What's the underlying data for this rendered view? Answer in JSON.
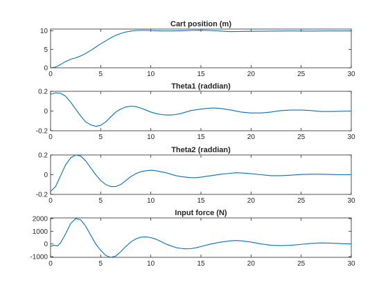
{
  "chart_data": [
    {
      "type": "line",
      "title": "Cart position (m)",
      "xlim": [
        0,
        30
      ],
      "ylim": [
        0,
        10.5
      ],
      "xticks": [
        0,
        5,
        10,
        15,
        20,
        25,
        30
      ],
      "yticks": [
        0,
        5,
        10
      ],
      "grid": false,
      "line_color": "#0072BD",
      "series": [
        {
          "x": [
            0,
            0.5,
            1,
            1.5,
            2,
            2.5,
            3,
            3.5,
            4,
            4.5,
            5,
            5.5,
            6,
            6.5,
            7,
            7.5,
            8,
            8.5,
            9,
            9.5,
            10,
            11,
            12,
            13,
            14,
            15,
            16,
            17,
            18,
            19,
            20,
            22,
            24,
            26,
            28,
            30
          ],
          "y": [
            0,
            0.2,
            0.9,
            1.7,
            2.3,
            2.7,
            3.2,
            3.9,
            4.7,
            5.6,
            6.5,
            7.3,
            8.1,
            8.8,
            9.3,
            9.7,
            9.95,
            10.1,
            10.15,
            10.15,
            10.1,
            10.0,
            10.0,
            10.05,
            10.15,
            10.2,
            10.1,
            9.95,
            9.8,
            9.85,
            9.9,
            9.95,
            10.0,
            9.95,
            10.0,
            10.0
          ]
        }
      ]
    },
    {
      "type": "line",
      "title": "Theta1 (raddian)",
      "xlim": [
        0,
        30
      ],
      "ylim": [
        -0.2,
        0.2
      ],
      "xticks": [
        0,
        5,
        10,
        15,
        20,
        25,
        30
      ],
      "yticks": [
        -0.2,
        0,
        0.2
      ],
      "grid": false,
      "line_color": "#0072BD",
      "series": [
        {
          "x": [
            0,
            0.5,
            1,
            1.5,
            2,
            2.5,
            3,
            3.5,
            4,
            4.5,
            5,
            5.5,
            6,
            6.5,
            7,
            7.5,
            8,
            8.5,
            9,
            9.5,
            10,
            10.5,
            11,
            11.5,
            12,
            12.5,
            13,
            14,
            15,
            16,
            16.5,
            17,
            18,
            19,
            20,
            21,
            22,
            23,
            24,
            25,
            26,
            27,
            28,
            29,
            30
          ],
          "y": [
            0.17,
            0.185,
            0.18,
            0.15,
            0.09,
            0.02,
            -0.05,
            -0.11,
            -0.14,
            -0.155,
            -0.145,
            -0.11,
            -0.06,
            -0.01,
            0.02,
            0.04,
            0.05,
            0.045,
            0.03,
            0.01,
            -0.01,
            -0.025,
            -0.035,
            -0.04,
            -0.04,
            -0.035,
            -0.025,
            0.005,
            0.02,
            0.03,
            0.03,
            0.025,
            0.01,
            -0.01,
            -0.02,
            -0.02,
            -0.01,
            0.005,
            0.01,
            0.01,
            0.005,
            -0.005,
            -0.005,
            -0.002,
            0
          ]
        }
      ]
    },
    {
      "type": "line",
      "title": "Theta2 (raddian)",
      "xlim": [
        0,
        30
      ],
      "ylim": [
        -0.2,
        0.2
      ],
      "xticks": [
        0,
        5,
        10,
        15,
        20,
        25,
        30
      ],
      "yticks": [
        -0.2,
        0,
        0.2
      ],
      "grid": false,
      "line_color": "#0072BD",
      "series": [
        {
          "x": [
            0,
            0.5,
            1,
            1.5,
            2,
            2.5,
            3,
            3.5,
            4,
            4.5,
            5,
            5.5,
            6,
            6.5,
            7,
            7.5,
            8,
            8.5,
            9,
            9.5,
            10,
            10.5,
            11,
            11.5,
            12,
            12.5,
            13,
            13.5,
            14,
            14.5,
            15,
            16,
            17,
            18,
            18.5,
            19,
            20,
            21,
            22,
            23,
            24,
            25,
            26,
            27,
            28,
            29,
            30
          ],
          "y": [
            -0.17,
            -0.12,
            -0.01,
            0.1,
            0.17,
            0.2,
            0.19,
            0.14,
            0.07,
            0.0,
            -0.06,
            -0.1,
            -0.12,
            -0.12,
            -0.1,
            -0.06,
            -0.02,
            0.01,
            0.03,
            0.04,
            0.045,
            0.04,
            0.03,
            0.02,
            0.005,
            -0.01,
            -0.02,
            -0.025,
            -0.03,
            -0.03,
            -0.025,
            -0.01,
            0.005,
            0.015,
            0.02,
            0.018,
            0.01,
            0.0,
            -0.01,
            -0.01,
            -0.005,
            0.002,
            0.005,
            0.005,
            0.002,
            0.0,
            0.0
          ]
        }
      ]
    },
    {
      "type": "line",
      "title": "Input force (N)",
      "xlim": [
        0,
        30
      ],
      "ylim": [
        -1050,
        2050
      ],
      "xticks": [
        0,
        5,
        10,
        15,
        20,
        25,
        30
      ],
      "yticks": [
        -1000,
        0,
        1000,
        2000
      ],
      "grid": false,
      "line_color": "#0072BD",
      "series": [
        {
          "x": [
            0,
            0.3,
            0.7,
            1,
            1.5,
            2,
            2.5,
            3,
            3.5,
            4,
            4.5,
            5,
            5.5,
            6,
            6.5,
            7,
            7.5,
            8,
            8.5,
            9,
            9.5,
            10,
            10.5,
            11,
            11.5,
            12,
            12.5,
            13,
            13.5,
            14,
            14.5,
            15,
            16,
            17,
            18,
            18.5,
            19,
            20,
            21,
            22,
            23,
            24,
            25,
            26,
            27,
            28,
            29,
            30
          ],
          "y": [
            -200,
            -100,
            -150,
            100,
            800,
            1600,
            2000,
            1900,
            1400,
            700,
            0,
            -500,
            -900,
            -1050,
            -950,
            -600,
            -200,
            150,
            400,
            530,
            560,
            500,
            380,
            200,
            0,
            -150,
            -280,
            -350,
            -380,
            -370,
            -300,
            -200,
            0,
            150,
            250,
            270,
            250,
            150,
            0,
            -100,
            -130,
            -100,
            -30,
            50,
            80,
            70,
            30,
            0
          ]
        }
      ]
    }
  ]
}
